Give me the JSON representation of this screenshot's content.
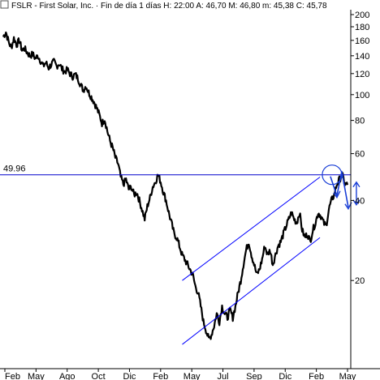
{
  "header": {
    "symbol": "FSLR",
    "text": "FSLR - First Solar, Inc. · Fin de día 1 días  H: 22:00  A: 46,70  M: 46,80  m: 45,38  C: 45,78"
  },
  "colors": {
    "price": "#000000",
    "channel": "#0000ff",
    "resistance": "#0000cc",
    "annotation": "#1a3fd6",
    "grid": "#d9d9d9"
  },
  "chart_data": {
    "type": "line",
    "title": "",
    "scale": "log",
    "ylim": [
      10,
      200
    ],
    "yticks": [
      200,
      180,
      160,
      140,
      120,
      100,
      80,
      60,
      40,
      20
    ],
    "xticks": [
      "Feb",
      "May",
      "Ago",
      "Oct",
      "Dic",
      "Feb",
      "May",
      "Jul",
      "Sep",
      "Dic",
      "Feb",
      "May"
    ],
    "grid": false,
    "series": [
      {
        "values": [
          165,
          172,
          158,
          150,
          163,
          154,
          160,
          147,
          149,
          144,
          140,
          142,
          137,
          140,
          134,
          128,
          132,
          126,
          130,
          133,
          128,
          131,
          125,
          122,
          124,
          120,
          117,
          119,
          115,
          109,
          104,
          108,
          102,
          98,
          94,
          89,
          84,
          78,
          81,
          73,
          67,
          63,
          58,
          55,
          49,
          46,
          48,
          44,
          45,
          42,
          43,
          40,
          37,
          34,
          38,
          41,
          45,
          47,
          50,
          47,
          43,
          40,
          36,
          33,
          30,
          29,
          27,
          25,
          24,
          23,
          22,
          21,
          19,
          18,
          16,
          14,
          13,
          12,
          12.5,
          13.5,
          15,
          14,
          16,
          15,
          14.5,
          15.5,
          14.5,
          16,
          18,
          20,
          23,
          26,
          28,
          25,
          23,
          21,
          22,
          24,
          27,
          25,
          26,
          23,
          25,
          27,
          28,
          30,
          32,
          34,
          36,
          34,
          33,
          36,
          31,
          29,
          30,
          28,
          31,
          33,
          36,
          35,
          33,
          32,
          37,
          40,
          42,
          46,
          48,
          50,
          46,
          45.78
        ]
      }
    ],
    "annotations": {
      "resistance_label": "49.96",
      "resistance_value": 49.96,
      "channel_upper": [
        [
          0.52,
          20
        ],
        [
          0.92,
          49
        ]
      ],
      "channel_lower": [
        [
          0.52,
          11.5
        ],
        [
          0.92,
          29
        ]
      ]
    }
  }
}
